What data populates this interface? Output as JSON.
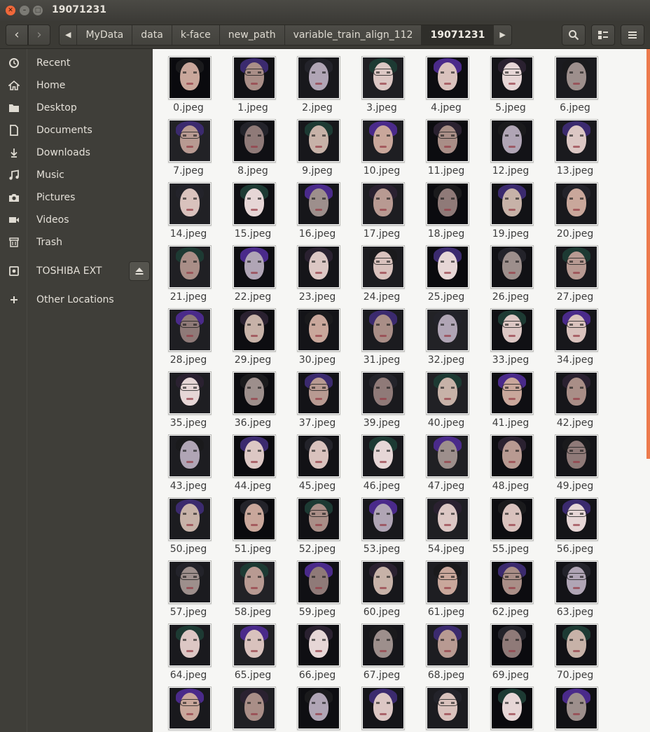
{
  "window": {
    "title": "19071231"
  },
  "breadcrumbs": [
    "MyData",
    "data",
    "k-face",
    "new_path",
    "variable_train_align_112",
    "19071231"
  ],
  "sidebar": {
    "items": [
      {
        "label": "Recent",
        "icon": "clock-icon"
      },
      {
        "label": "Home",
        "icon": "home-icon"
      },
      {
        "label": "Desktop",
        "icon": "folder-icon"
      },
      {
        "label": "Documents",
        "icon": "document-icon"
      },
      {
        "label": "Downloads",
        "icon": "download-icon"
      },
      {
        "label": "Music",
        "icon": "music-icon"
      },
      {
        "label": "Pictures",
        "icon": "camera-icon"
      },
      {
        "label": "Videos",
        "icon": "video-icon"
      },
      {
        "label": "Trash",
        "icon": "trash-icon"
      }
    ],
    "device": {
      "label": "TOSHIBA EXT",
      "icon": "drive-icon"
    },
    "other": {
      "label": "Other Locations",
      "icon": "plus-icon"
    }
  },
  "files": [
    "0.jpeg",
    "1.jpeg",
    "2.jpeg",
    "3.jpeg",
    "4.jpeg",
    "5.jpeg",
    "6.jpeg",
    "7.jpeg",
    "8.jpeg",
    "9.jpeg",
    "10.jpeg",
    "11.jpeg",
    "12.jpeg",
    "13.jpeg",
    "14.jpeg",
    "15.jpeg",
    "16.jpeg",
    "17.jpeg",
    "18.jpeg",
    "19.jpeg",
    "20.jpeg",
    "21.jpeg",
    "22.jpeg",
    "23.jpeg",
    "24.jpeg",
    "25.jpeg",
    "26.jpeg",
    "27.jpeg",
    "28.jpeg",
    "29.jpeg",
    "30.jpeg",
    "31.jpeg",
    "32.jpeg",
    "33.jpeg",
    "34.jpeg",
    "35.jpeg",
    "36.jpeg",
    "37.jpeg",
    "39.jpeg",
    "40.jpeg",
    "41.jpeg",
    "42.jpeg",
    "43.jpeg",
    "44.jpeg",
    "45.jpeg",
    "46.jpeg",
    "47.jpeg",
    "48.jpeg",
    "49.jpeg",
    "50.jpeg",
    "51.jpeg",
    "52.jpeg",
    "53.jpeg",
    "54.jpeg",
    "55.jpeg",
    "56.jpeg",
    "57.jpeg",
    "58.jpeg",
    "59.jpeg",
    "60.jpeg",
    "61.jpeg",
    "62.jpeg",
    "63.jpeg",
    "64.jpeg",
    "65.jpeg",
    "66.jpeg",
    "67.jpeg",
    "68.jpeg",
    "69.jpeg",
    "70.jpeg",
    "",
    "",
    "",
    "",
    "",
    "",
    ""
  ],
  "colors": {
    "accent": "#ed7a4c",
    "sidebar": "#3f3e39",
    "header": "#3b3a35"
  }
}
